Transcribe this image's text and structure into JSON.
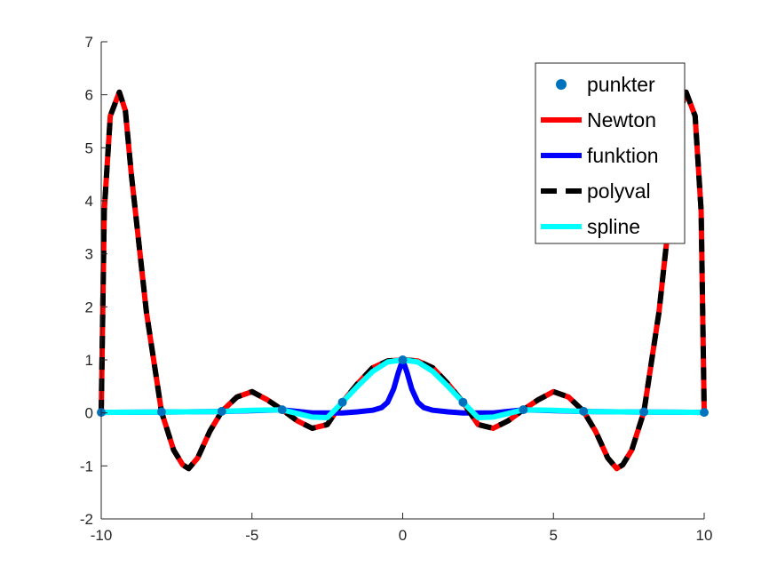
{
  "chart_data": {
    "type": "line",
    "title": "",
    "xlabel": "",
    "ylabel": "",
    "xlim": [
      -10,
      10
    ],
    "ylim": [
      -2,
      7
    ],
    "xticks": [
      -10,
      -5,
      0,
      5,
      10
    ],
    "xtick_labels": [
      "-10",
      "-5",
      "0",
      "5",
      "10"
    ],
    "yticks": [
      -2,
      -1,
      0,
      1,
      2,
      3,
      4,
      5,
      6,
      7
    ],
    "ytick_labels": [
      "-2",
      "-1",
      "0",
      "1",
      "2",
      "3",
      "4",
      "5",
      "6",
      "7"
    ],
    "grid": false,
    "legend_position": "top-right",
    "series": [
      {
        "name": "punkter",
        "style": "markers",
        "color": "#0072BD",
        "x": [
          -10,
          -8,
          -6,
          -4,
          -2,
          0,
          2,
          4,
          6,
          8,
          10
        ],
        "y": [
          0.0099,
          0.0154,
          0.027,
          0.0588,
          0.2,
          1.0,
          0.2,
          0.0588,
          0.027,
          0.0154,
          0.0099
        ]
      },
      {
        "name": "Newton",
        "style": "solid",
        "color": "#FF0000",
        "x": [
          -10,
          -9.9,
          -9.7,
          -9.4,
          -9.2,
          -9.0,
          -8.5,
          -8.0,
          -7.6,
          -7.3,
          -7.1,
          -6.8,
          -6.4,
          -6.0,
          -5.5,
          -5.0,
          -4.5,
          -4.0,
          -3.5,
          -3.0,
          -2.5,
          -2.0,
          -1.5,
          -1.0,
          -0.5,
          0,
          0.5,
          1.0,
          1.5,
          2.0,
          2.5,
          3.0,
          3.5,
          4.0,
          4.5,
          5.0,
          5.5,
          6.0,
          6.4,
          6.8,
          7.1,
          7.3,
          7.6,
          8.0,
          8.5,
          9.0,
          9.2,
          9.4,
          9.7,
          9.9,
          10
        ],
        "y": [
          0.01,
          3.8,
          5.6,
          6.05,
          5.7,
          4.5,
          1.9,
          0.02,
          -0.7,
          -0.98,
          -1.05,
          -0.85,
          -0.35,
          0.03,
          0.3,
          0.4,
          0.25,
          0.06,
          -0.15,
          -0.29,
          -0.22,
          0.2,
          0.55,
          0.85,
          0.98,
          1.0,
          0.98,
          0.85,
          0.55,
          0.2,
          -0.22,
          -0.29,
          -0.15,
          0.06,
          0.25,
          0.4,
          0.3,
          0.03,
          -0.35,
          -0.85,
          -1.05,
          -0.98,
          -0.7,
          0.02,
          1.9,
          4.5,
          5.7,
          6.05,
          5.6,
          3.8,
          0.01
        ]
      },
      {
        "name": "funktion",
        "style": "solid",
        "color": "#0000FF",
        "x": [
          -10,
          -8,
          -6,
          -4,
          -3,
          -2,
          -1.5,
          -1,
          -0.7,
          -0.5,
          -0.3,
          -0.15,
          0,
          0.15,
          0.3,
          0.5,
          0.7,
          1,
          1.5,
          2,
          3,
          4,
          6,
          8,
          10
        ],
        "y": [
          0.0099,
          0.0154,
          0.027,
          0.0588,
          0.0,
          0.0,
          0.02,
          0.05,
          0.1,
          0.2,
          0.45,
          0.75,
          1.0,
          0.75,
          0.45,
          0.2,
          0.1,
          0.05,
          0.02,
          0.0,
          0.0,
          0.0588,
          0.027,
          0.0154,
          0.0099
        ]
      },
      {
        "name": "polyval",
        "style": "dashed",
        "color": "#000000",
        "x": [
          -10,
          -9.9,
          -9.7,
          -9.4,
          -9.2,
          -9.0,
          -8.5,
          -8.0,
          -7.6,
          -7.3,
          -7.1,
          -6.8,
          -6.4,
          -6.0,
          -5.5,
          -5.0,
          -4.5,
          -4.0,
          -3.5,
          -3.0,
          -2.5,
          -2.0,
          -1.5,
          -1.0,
          -0.5,
          0,
          0.5,
          1.0,
          1.5,
          2.0,
          2.5,
          3.0,
          3.5,
          4.0,
          4.5,
          5.0,
          5.5,
          6.0,
          6.4,
          6.8,
          7.1,
          7.3,
          7.6,
          8.0,
          8.5,
          9.0,
          9.2,
          9.4,
          9.7,
          9.9,
          10
        ],
        "y": [
          0.01,
          3.8,
          5.6,
          6.05,
          5.7,
          4.5,
          1.9,
          0.02,
          -0.7,
          -0.98,
          -1.05,
          -0.85,
          -0.35,
          0.03,
          0.3,
          0.4,
          0.25,
          0.06,
          -0.15,
          -0.29,
          -0.22,
          0.2,
          0.55,
          0.85,
          0.98,
          1.0,
          0.98,
          0.85,
          0.55,
          0.2,
          -0.22,
          -0.29,
          -0.15,
          0.06,
          0.25,
          0.4,
          0.3,
          0.03,
          -0.35,
          -0.85,
          -1.05,
          -0.98,
          -0.7,
          0.02,
          1.9,
          4.5,
          5.7,
          6.05,
          5.6,
          3.8,
          0.01
        ]
      },
      {
        "name": "spline",
        "style": "solid",
        "color": "#00FFFF",
        "x": [
          -10,
          -8,
          -6,
          -5,
          -4,
          -3,
          -2.5,
          -2,
          -1.5,
          -1,
          -0.5,
          0,
          0.5,
          1,
          1.5,
          2,
          2.5,
          3,
          4,
          5,
          6,
          8,
          10
        ],
        "y": [
          0.0099,
          0.0154,
          0.027,
          0.05,
          0.0588,
          -0.08,
          -0.09,
          0.2,
          0.5,
          0.78,
          0.96,
          1.0,
          0.96,
          0.78,
          0.5,
          0.2,
          -0.09,
          -0.08,
          0.0588,
          0.05,
          0.027,
          0.0154,
          0.0099
        ]
      }
    ]
  }
}
